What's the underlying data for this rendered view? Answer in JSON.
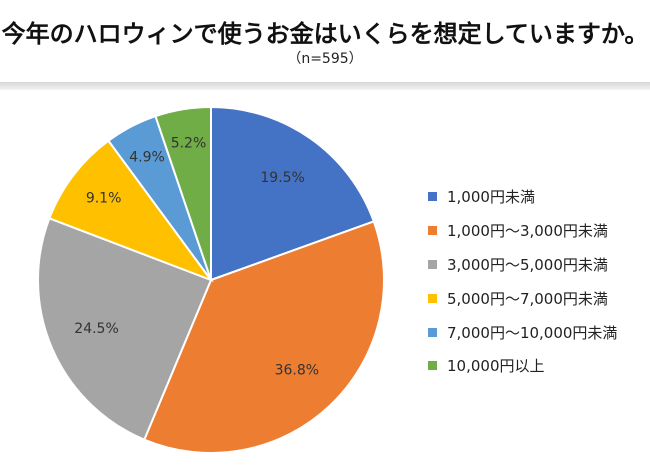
{
  "title": "今年のハロウィンで使うお金はいくらを想定していますか。",
  "subtitle": "（n=595）",
  "chart_data": {
    "type": "pie",
    "title": "今年のハロウィンで使うお金はいくらを想定していますか。",
    "subtitle": "（n=595）",
    "categories": [
      "1,000円未満",
      "1,000円～3,000円未満",
      "3,000円～5,000円未満",
      "5,000円～7,000円未満",
      "7,000円～10,000円未満",
      "10,000円以上"
    ],
    "values": [
      19.5,
      36.8,
      24.5,
      9.1,
      4.9,
      5.2
    ],
    "data_labels": [
      "19.5%",
      "36.8%",
      "24.5%",
      "9.1%",
      "4.9%",
      "5.2%"
    ],
    "colors": [
      "#4472C4",
      "#ED7D31",
      "#A5A5A5",
      "#FFC000",
      "#5B9BD5",
      "#70AD47"
    ],
    "start_angle": "12 o'clock",
    "direction": "clockwise",
    "legend_position": "right"
  }
}
